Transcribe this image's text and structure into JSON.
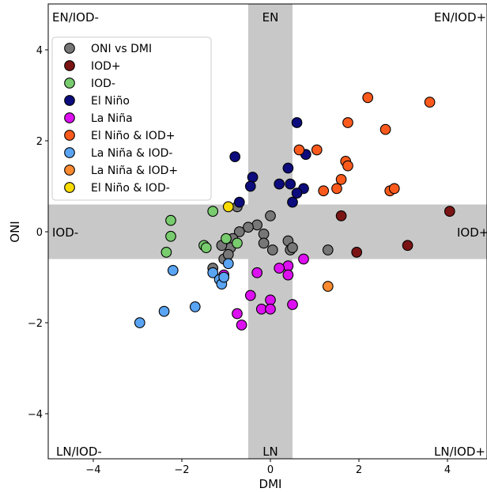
{
  "chart_data": {
    "type": "scatter",
    "xlabel": "DMI",
    "ylabel": "ONI",
    "xlim": [
      -5,
      5
    ],
    "ylim": [
      -5,
      5
    ],
    "xticks": [
      -4,
      -2,
      0,
      2,
      4
    ],
    "yticks": [
      -4,
      -2,
      0,
      2,
      4
    ],
    "tick_labels_x": [
      "−4",
      "−2",
      "0",
      "2",
      "4"
    ],
    "tick_labels_y": [
      "−4",
      "−2",
      "0",
      "2",
      "4"
    ],
    "grid": false,
    "legend_position": "upper-left",
    "shaded_bands": [
      {
        "axis": "x",
        "range": [
          -0.5,
          0.5
        ],
        "color": "#c8c8c8"
      },
      {
        "axis": "y",
        "range": [
          -0.6,
          0.6
        ],
        "color": "#c8c8c8"
      }
    ],
    "region_labels": [
      {
        "text": "EN/IOD-",
        "anchor": "top-left"
      },
      {
        "text": "EN",
        "anchor": "top-center"
      },
      {
        "text": "EN/IOD+",
        "anchor": "top-right"
      },
      {
        "text": "IOD-",
        "anchor": "middle-left"
      },
      {
        "text": "IOD+",
        "anchor": "middle-right"
      },
      {
        "text": "LN/IOD-",
        "anchor": "bottom-left"
      },
      {
        "text": "LN",
        "anchor": "bottom-center"
      },
      {
        "text": "LN/IOD+",
        "anchor": "bottom-right"
      }
    ],
    "series": [
      {
        "name": "ONI vs DMI",
        "color": "#777777",
        "points": [
          [
            0.0,
            0.35
          ],
          [
            -0.3,
            0.15
          ],
          [
            -0.5,
            0.1
          ],
          [
            -0.7,
            0.0
          ],
          [
            -0.75,
            0.55
          ],
          [
            -0.85,
            -0.15
          ],
          [
            -0.9,
            -0.35
          ],
          [
            -1.1,
            -0.3
          ],
          [
            -0.15,
            -0.05
          ],
          [
            -0.15,
            -0.25
          ],
          [
            0.05,
            -0.4
          ],
          [
            0.4,
            -0.2
          ],
          [
            0.45,
            -0.4
          ],
          [
            0.5,
            -0.35
          ],
          [
            1.3,
            -0.4
          ],
          [
            -1.3,
            -0.8
          ],
          [
            -1.05,
            -0.6
          ],
          [
            -0.95,
            -0.5
          ]
        ]
      },
      {
        "name": "IOD+",
        "color": "#7b1414",
        "points": [
          [
            1.6,
            0.35
          ],
          [
            1.95,
            -0.45
          ],
          [
            3.1,
            -0.3
          ],
          [
            4.05,
            0.45
          ]
        ]
      },
      {
        "name": "IOD-",
        "color": "#78cc6e",
        "points": [
          [
            -2.25,
            0.25
          ],
          [
            -2.25,
            -0.1
          ],
          [
            -2.35,
            -0.45
          ],
          [
            -1.5,
            -0.3
          ],
          [
            -1.45,
            -0.35
          ],
          [
            -1.3,
            0.45
          ],
          [
            -1.0,
            -0.15
          ],
          [
            -0.75,
            -0.25
          ]
        ]
      },
      {
        "name": "El Niño",
        "color": "#0c0c7c",
        "points": [
          [
            0.6,
            2.4
          ],
          [
            0.4,
            1.4
          ],
          [
            0.8,
            1.7
          ],
          [
            -0.8,
            1.65
          ],
          [
            -0.4,
            1.2
          ],
          [
            -0.45,
            1.0
          ],
          [
            0.2,
            1.05
          ],
          [
            0.45,
            1.05
          ],
          [
            0.75,
            0.95
          ],
          [
            0.6,
            0.85
          ],
          [
            0.5,
            0.65
          ],
          [
            -0.7,
            0.65
          ]
        ]
      },
      {
        "name": "La Niña",
        "color": "#dc10f0",
        "points": [
          [
            0.75,
            -0.6
          ],
          [
            0.4,
            -0.75
          ],
          [
            0.2,
            -0.8
          ],
          [
            0.4,
            -0.95
          ],
          [
            -0.3,
            -0.9
          ],
          [
            -0.45,
            -1.4
          ],
          [
            0.0,
            -1.5
          ],
          [
            0.5,
            -1.6
          ],
          [
            -0.2,
            -1.7
          ],
          [
            0.0,
            -1.7
          ],
          [
            -0.75,
            -1.8
          ],
          [
            -0.65,
            -2.05
          ],
          [
            -1.05,
            -0.95
          ]
        ]
      },
      {
        "name": "La Niña & IOD-",
        "color": "#5aa4f4",
        "points": [
          [
            -2.95,
            -2.0
          ],
          [
            -2.4,
            -1.75
          ],
          [
            -1.7,
            -1.65
          ],
          [
            -1.3,
            -0.9
          ],
          [
            -1.15,
            -1.05
          ],
          [
            -1.1,
            -1.15
          ],
          [
            -1.05,
            -1.0
          ],
          [
            -0.95,
            -0.7
          ],
          [
            -2.2,
            -0.85
          ]
        ]
      },
      {
        "name": "La Niña & IOD+",
        "color": "#fb8a30",
        "points": [
          [
            1.3,
            -1.2
          ]
        ]
      },
      {
        "name": "El Niño & IOD+",
        "color": "#fc5a1c",
        "points": [
          [
            2.2,
            2.95
          ],
          [
            3.6,
            2.85
          ],
          [
            1.75,
            2.4
          ],
          [
            2.6,
            2.25
          ],
          [
            0.65,
            1.8
          ],
          [
            1.05,
            1.8
          ],
          [
            1.7,
            1.55
          ],
          [
            1.75,
            1.45
          ],
          [
            1.6,
            1.15
          ],
          [
            1.5,
            0.95
          ],
          [
            1.2,
            0.9
          ],
          [
            2.7,
            0.9
          ],
          [
            2.8,
            0.95
          ]
        ]
      },
      {
        "name": "El Niño & IOD-",
        "color": "#fbdc00",
        "points": [
          [
            -0.95,
            0.55
          ]
        ]
      }
    ],
    "legend_order": [
      "ONI vs DMI",
      "IOD+",
      "IOD-",
      "El Niño",
      "La Niña",
      "El Niño & IOD+",
      "La Niña & IOD-",
      "La Niña & IOD+",
      "El Niño & IOD-"
    ]
  }
}
